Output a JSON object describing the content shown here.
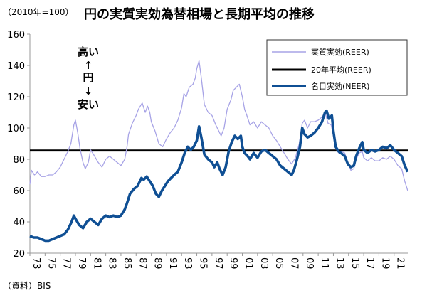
{
  "chart_data": {
    "type": "line",
    "title": "円の実質実効為替相場と長期平均の推移",
    "unit_label": "（2010年=100）",
    "source": "（資料）BIS",
    "annotation": {
      "top": "高い",
      "up_arrow": "↑",
      "middle": "円",
      "down_arrow": "↓",
      "bottom": "安い"
    },
    "ylim": [
      20,
      160
    ],
    "yticks": [
      20,
      40,
      60,
      80,
      100,
      120,
      140,
      160
    ],
    "xlim": [
      1973,
      2022.9
    ],
    "xticks": [
      {
        "year": 1973,
        "label": "73"
      },
      {
        "year": 1975,
        "label": "75"
      },
      {
        "year": 1977,
        "label": "77"
      },
      {
        "year": 1979,
        "label": "79"
      },
      {
        "year": 1981,
        "label": "81"
      },
      {
        "year": 1983,
        "label": "83"
      },
      {
        "year": 1985,
        "label": "85"
      },
      {
        "year": 1987,
        "label": "87"
      },
      {
        "year": 1989,
        "label": "89"
      },
      {
        "year": 1991,
        "label": "91"
      },
      {
        "year": 1993,
        "label": "93"
      },
      {
        "year": 1995,
        "label": "95"
      },
      {
        "year": 1997,
        "label": "97"
      },
      {
        "year": 1999,
        "label": "99"
      },
      {
        "year": 2001,
        "label": "01"
      },
      {
        "year": 2003,
        "label": "03"
      },
      {
        "year": 2005,
        "label": "05"
      },
      {
        "year": 2007,
        "label": "07"
      },
      {
        "year": 2009,
        "label": "09"
      },
      {
        "year": 2011,
        "label": "11"
      },
      {
        "year": 2013,
        "label": "13"
      },
      {
        "year": 2015,
        "label": "15"
      },
      {
        "year": 2017,
        "label": "17"
      },
      {
        "year": 2019,
        "label": "19"
      },
      {
        "year": 2021,
        "label": "21"
      }
    ],
    "legend_position": "top-right",
    "series": [
      {
        "name": "実質実効(REER)",
        "color": "#a7a3e6",
        "points": [
          [
            1973.0,
            64
          ],
          [
            1973.2,
            73
          ],
          [
            1973.6,
            70
          ],
          [
            1974.0,
            72
          ],
          [
            1974.5,
            69
          ],
          [
            1975.0,
            69
          ],
          [
            1975.5,
            70
          ],
          [
            1976.0,
            70
          ],
          [
            1976.5,
            72
          ],
          [
            1977.0,
            75
          ],
          [
            1977.5,
            80
          ],
          [
            1978.0,
            85
          ],
          [
            1978.4,
            90
          ],
          [
            1978.8,
            102
          ],
          [
            1979.0,
            105
          ],
          [
            1979.3,
            97
          ],
          [
            1979.6,
            87
          ],
          [
            1980.0,
            78
          ],
          [
            1980.3,
            74
          ],
          [
            1980.7,
            78
          ],
          [
            1981.0,
            86
          ],
          [
            1981.4,
            83
          ],
          [
            1982.0,
            78
          ],
          [
            1982.5,
            75
          ],
          [
            1983.0,
            80
          ],
          [
            1983.5,
            82
          ],
          [
            1984.0,
            80
          ],
          [
            1984.5,
            78
          ],
          [
            1985.0,
            76
          ],
          [
            1985.5,
            80
          ],
          [
            1985.8,
            88
          ],
          [
            1986.0,
            96
          ],
          [
            1986.5,
            103
          ],
          [
            1987.0,
            108
          ],
          [
            1987.3,
            112
          ],
          [
            1987.8,
            116
          ],
          [
            1988.2,
            110
          ],
          [
            1988.5,
            114
          ],
          [
            1988.8,
            110
          ],
          [
            1989.0,
            104
          ],
          [
            1989.5,
            98
          ],
          [
            1990.0,
            90
          ],
          [
            1990.5,
            88
          ],
          [
            1991.0,
            93
          ],
          [
            1991.5,
            97
          ],
          [
            1992.0,
            100
          ],
          [
            1992.5,
            105
          ],
          [
            1993.0,
            113
          ],
          [
            1993.3,
            122
          ],
          [
            1993.6,
            120
          ],
          [
            1994.0,
            126
          ],
          [
            1994.5,
            128
          ],
          [
            1994.8,
            132
          ],
          [
            1995.0,
            138
          ],
          [
            1995.3,
            143
          ],
          [
            1995.6,
            132
          ],
          [
            1996.0,
            115
          ],
          [
            1996.5,
            110
          ],
          [
            1997.0,
            108
          ],
          [
            1997.5,
            102
          ],
          [
            1997.8,
            99
          ],
          [
            1998.2,
            95
          ],
          [
            1998.6,
            100
          ],
          [
            1999.0,
            112
          ],
          [
            1999.5,
            118
          ],
          [
            1999.8,
            124
          ],
          [
            2000.2,
            126
          ],
          [
            2000.6,
            128
          ],
          [
            2001.0,
            120
          ],
          [
            2001.3,
            112
          ],
          [
            2001.6,
            108
          ],
          [
            2002.0,
            102
          ],
          [
            2002.5,
            104
          ],
          [
            2003.0,
            100
          ],
          [
            2003.5,
            104
          ],
          [
            2004.0,
            102
          ],
          [
            2004.5,
            100
          ],
          [
            2005.0,
            95
          ],
          [
            2005.5,
            92
          ],
          [
            2006.0,
            88
          ],
          [
            2006.5,
            84
          ],
          [
            2007.0,
            80
          ],
          [
            2007.5,
            77
          ],
          [
            2008.0,
            81
          ],
          [
            2008.5,
            90
          ],
          [
            2008.9,
            103
          ],
          [
            2009.2,
            105
          ],
          [
            2009.6,
            100
          ],
          [
            2010.0,
            104
          ],
          [
            2010.5,
            104
          ],
          [
            2011.0,
            105
          ],
          [
            2011.5,
            107
          ],
          [
            2011.9,
            110
          ],
          [
            2012.3,
            103
          ],
          [
            2012.7,
            102
          ],
          [
            2013.0,
            95
          ],
          [
            2013.3,
            87
          ],
          [
            2013.7,
            84
          ],
          [
            2014.0,
            85
          ],
          [
            2014.5,
            84
          ],
          [
            2014.9,
            78
          ],
          [
            2015.3,
            73
          ],
          [
            2015.7,
            74
          ],
          [
            2016.0,
            80
          ],
          [
            2016.4,
            84
          ],
          [
            2016.8,
            85
          ],
          [
            2017.0,
            81
          ],
          [
            2017.5,
            79
          ],
          [
            2018.0,
            81
          ],
          [
            2018.5,
            79
          ],
          [
            2019.0,
            79
          ],
          [
            2019.5,
            81
          ],
          [
            2020.0,
            80
          ],
          [
            2020.5,
            82
          ],
          [
            2021.0,
            80
          ],
          [
            2021.5,
            76
          ],
          [
            2022.0,
            74
          ],
          [
            2022.4,
            66
          ],
          [
            2022.8,
            60
          ]
        ]
      },
      {
        "name": "20年平均(REER)",
        "color": "#000000",
        "constant": 85.6
      },
      {
        "name": "名目実効(NEER)",
        "color": "#0f4f94",
        "points": [
          [
            1973.0,
            31
          ],
          [
            1973.5,
            30
          ],
          [
            1974.0,
            30
          ],
          [
            1974.5,
            29
          ],
          [
            1975.0,
            28
          ],
          [
            1975.5,
            28
          ],
          [
            1976.0,
            29
          ],
          [
            1976.5,
            30
          ],
          [
            1977.0,
            31
          ],
          [
            1977.5,
            32
          ],
          [
            1978.0,
            35
          ],
          [
            1978.5,
            40
          ],
          [
            1978.8,
            44
          ],
          [
            1979.0,
            42
          ],
          [
            1979.5,
            38
          ],
          [
            1980.0,
            36
          ],
          [
            1980.5,
            40
          ],
          [
            1981.0,
            42
          ],
          [
            1981.5,
            40
          ],
          [
            1982.0,
            38
          ],
          [
            1982.5,
            42
          ],
          [
            1983.0,
            44
          ],
          [
            1983.5,
            43
          ],
          [
            1984.0,
            44
          ],
          [
            1984.5,
            43
          ],
          [
            1985.0,
            44
          ],
          [
            1985.5,
            48
          ],
          [
            1985.8,
            52
          ],
          [
            1986.2,
            58
          ],
          [
            1986.7,
            61
          ],
          [
            1987.2,
            63
          ],
          [
            1987.7,
            68
          ],
          [
            1988.0,
            67
          ],
          [
            1988.4,
            69
          ],
          [
            1988.8,
            66
          ],
          [
            1989.2,
            63
          ],
          [
            1989.6,
            58
          ],
          [
            1990.0,
            56
          ],
          [
            1990.4,
            60
          ],
          [
            1990.8,
            63
          ],
          [
            1991.2,
            66
          ],
          [
            1991.6,
            68
          ],
          [
            1992.0,
            70
          ],
          [
            1992.5,
            72
          ],
          [
            1993.0,
            78
          ],
          [
            1993.4,
            84
          ],
          [
            1993.8,
            88
          ],
          [
            1994.2,
            86
          ],
          [
            1994.6,
            88
          ],
          [
            1995.0,
            92
          ],
          [
            1995.3,
            101
          ],
          [
            1995.6,
            94
          ],
          [
            1996.0,
            83
          ],
          [
            1996.5,
            80
          ],
          [
            1997.0,
            78
          ],
          [
            1997.3,
            75
          ],
          [
            1997.7,
            78
          ],
          [
            1998.0,
            74
          ],
          [
            1998.4,
            70
          ],
          [
            1998.8,
            75
          ],
          [
            1999.2,
            85
          ],
          [
            1999.6,
            91
          ],
          [
            2000.0,
            95
          ],
          [
            2000.4,
            93
          ],
          [
            2000.8,
            95
          ],
          [
            2001.0,
            88
          ],
          [
            2001.3,
            84
          ],
          [
            2001.7,
            82
          ],
          [
            2002.0,
            80
          ],
          [
            2002.5,
            84
          ],
          [
            2003.0,
            81
          ],
          [
            2003.5,
            85
          ],
          [
            2004.0,
            86
          ],
          [
            2004.5,
            84
          ],
          [
            2005.0,
            82
          ],
          [
            2005.5,
            80
          ],
          [
            2006.0,
            76
          ],
          [
            2006.5,
            74
          ],
          [
            2007.0,
            72
          ],
          [
            2007.5,
            70
          ],
          [
            2007.8,
            73
          ],
          [
            2008.2,
            80
          ],
          [
            2008.6,
            88
          ],
          [
            2008.9,
            100
          ],
          [
            2009.2,
            96
          ],
          [
            2009.6,
            94
          ],
          [
            2010.0,
            95
          ],
          [
            2010.5,
            97
          ],
          [
            2011.0,
            100
          ],
          [
            2011.5,
            104
          ],
          [
            2011.9,
            110
          ],
          [
            2012.1,
            111
          ],
          [
            2012.4,
            106
          ],
          [
            2012.8,
            108
          ],
          [
            2013.0,
            98
          ],
          [
            2013.3,
            88
          ],
          [
            2013.7,
            85
          ],
          [
            2014.0,
            84
          ],
          [
            2014.5,
            82
          ],
          [
            2014.9,
            77
          ],
          [
            2015.3,
            75
          ],
          [
            2015.7,
            76
          ],
          [
            2016.0,
            82
          ],
          [
            2016.4,
            87
          ],
          [
            2016.8,
            91
          ],
          [
            2017.0,
            86
          ],
          [
            2017.5,
            84
          ],
          [
            2018.0,
            86
          ],
          [
            2018.5,
            85
          ],
          [
            2019.0,
            86
          ],
          [
            2019.5,
            88
          ],
          [
            2020.0,
            87
          ],
          [
            2020.5,
            89
          ],
          [
            2021.0,
            86
          ],
          [
            2021.5,
            84
          ],
          [
            2022.0,
            82
          ],
          [
            2022.4,
            76
          ],
          [
            2022.8,
            72
          ]
        ]
      }
    ]
  }
}
